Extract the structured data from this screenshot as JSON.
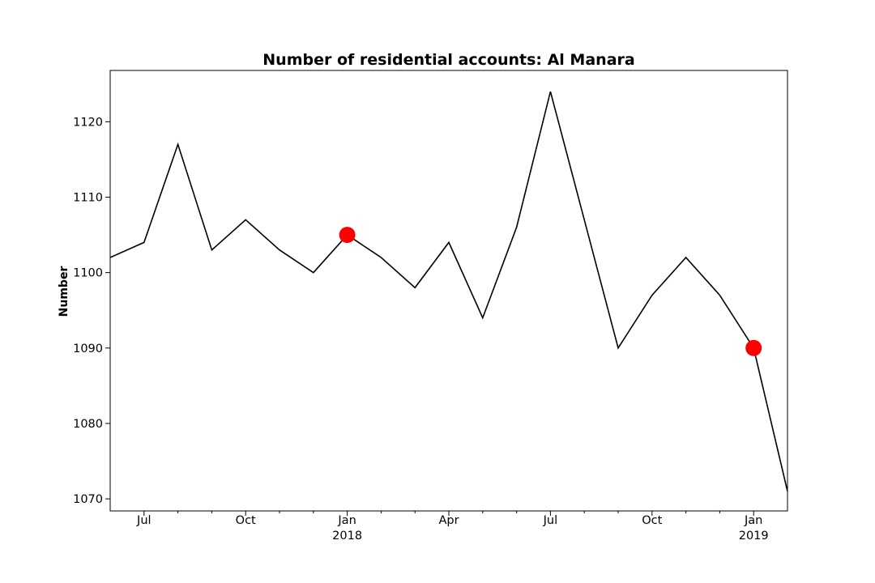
{
  "chart_data": {
    "type": "line",
    "title": "Number of residential accounts: Al Manara",
    "xlabel": "",
    "ylabel": "Number",
    "ylim": [
      1068.4,
      1126.8
    ],
    "y_ticks": [
      1070,
      1080,
      1090,
      1100,
      1110,
      1120
    ],
    "x": [
      "2017-06",
      "2017-07",
      "2017-08",
      "2017-09",
      "2017-10",
      "2017-11",
      "2017-12",
      "2018-01",
      "2018-02",
      "2018-03",
      "2018-04",
      "2018-05",
      "2018-06",
      "2018-07",
      "2018-08",
      "2018-09",
      "2018-10",
      "2018-11",
      "2018-12",
      "2019-01",
      "2019-02"
    ],
    "series": [
      {
        "name": "Number",
        "color": "#000000",
        "values": [
          1102,
          1104,
          1117,
          1103,
          1107,
          1103,
          1100,
          1105,
          1102,
          1098,
          1104,
          1094,
          1106,
          1124,
          1107,
          1090,
          1097,
          1102,
          1097,
          1090,
          1071
        ]
      }
    ],
    "highlights": [
      {
        "x": "2018-01",
        "value": 1105,
        "color": "#ff0000"
      },
      {
        "x": "2019-01",
        "value": 1090,
        "color": "#ff0000"
      }
    ],
    "x_major_ticks": [
      {
        "index": 1,
        "label": "Jul",
        "sublabel": ""
      },
      {
        "index": 4,
        "label": "Oct",
        "sublabel": ""
      },
      {
        "index": 7,
        "label": "Jan",
        "sublabel": "2018"
      },
      {
        "index": 10,
        "label": "Apr",
        "sublabel": ""
      },
      {
        "index": 13,
        "label": "Jul",
        "sublabel": ""
      },
      {
        "index": 16,
        "label": "Oct",
        "sublabel": ""
      },
      {
        "index": 19,
        "label": "Jan",
        "sublabel": "2019"
      }
    ],
    "x_minor_tick_indices": [
      2,
      3,
      5,
      6,
      8,
      9,
      11,
      12,
      14,
      15,
      17,
      18
    ],
    "grid": false,
    "legend": "none"
  }
}
